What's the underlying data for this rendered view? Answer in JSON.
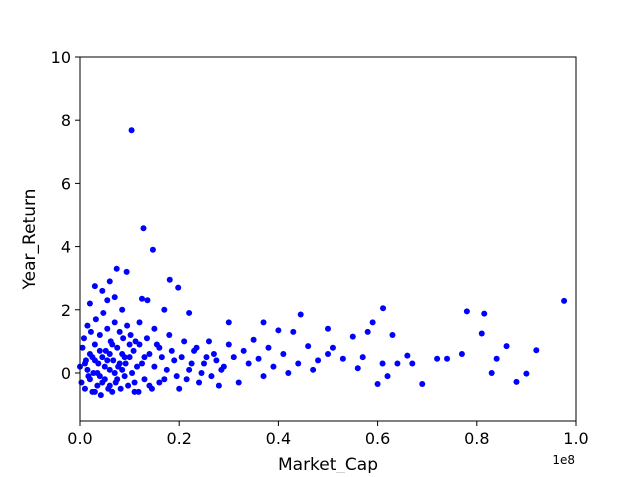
{
  "chart_data": {
    "type": "scatter",
    "color": "#0000ff",
    "xlabel": "Market_Cap",
    "ylabel": "Year_Return",
    "x_offset_label": "1e8",
    "xlim": [
      0,
      1
    ],
    "ylim": [
      -1.52,
      10
    ],
    "xticks": [
      {
        "value": 0,
        "label": "0.0"
      },
      0.2,
      0.4,
      0.6,
      0.8,
      {
        "value": 1,
        "label": "1.0"
      }
    ],
    "yticks": [
      0,
      2,
      4,
      6,
      8,
      10
    ],
    "x": [
      0.104,
      0.128,
      0.147,
      0.074,
      0.094,
      0.181,
      0.198,
      0.976,
      0.611,
      0.78,
      0.815,
      0.125,
      0.136,
      0.03,
      0.045,
      0.06,
      0.07,
      0.055,
      0.02,
      0.085,
      0.22,
      0.17,
      0.445,
      0.37,
      0.3,
      0.5,
      0.58,
      0.59,
      0.63,
      0.81,
      0.86,
      0.92,
      0.88,
      0.9,
      0.84,
      0.83,
      0.77,
      0.74,
      0.72,
      0.69,
      0.67,
      0.66,
      0.64,
      0.62,
      0.61,
      0.6,
      0.57,
      0.56,
      0.55,
      0.53,
      0.51,
      0.5,
      0.48,
      0.47,
      0.46,
      0.44,
      0.43,
      0.42,
      0.41,
      0.4,
      0.39,
      0.38,
      0.37,
      0.36,
      0.35,
      0.34,
      0.33,
      0.32,
      0.31,
      0.3,
      0.29,
      0.28,
      0.27,
      0.26,
      0.25,
      0.24,
      0.23,
      0.22,
      0.21,
      0.2,
      0.19,
      0.18,
      0.17,
      0.16,
      0.15,
      0.14,
      0.13,
      0.12,
      0.11,
      0.1,
      0.0,
      0.003,
      0.005,
      0.008,
      0.01,
      0.012,
      0.015,
      0.017,
      0.02,
      0.022,
      0.025,
      0.027,
      0.03,
      0.032,
      0.035,
      0.037,
      0.04,
      0.042,
      0.045,
      0.047,
      0.05,
      0.052,
      0.055,
      0.057,
      0.06,
      0.062,
      0.065,
      0.067,
      0.07,
      0.072,
      0.075,
      0.077,
      0.08,
      0.082,
      0.085,
      0.087,
      0.09,
      0.092,
      0.095,
      0.097,
      0.1,
      0.102,
      0.105,
      0.108,
      0.11,
      0.112,
      0.115,
      0.118,
      0.12,
      0.125,
      0.13,
      0.135,
      0.14,
      0.145,
      0.15,
      0.155,
      0.16,
      0.165,
      0.175,
      0.185,
      0.195,
      0.205,
      0.215,
      0.225,
      0.235,
      0.245,
      0.255,
      0.265,
      0.275,
      0.285,
      0.01,
      0.02,
      0.03,
      0.04,
      0.05,
      0.06,
      0.07,
      0.08,
      0.09,
      0.04,
      0.06,
      0.03,
      0.015,
      0.025,
      0.035,
      0.045,
      0.055,
      0.065,
      0.075,
      0.085
    ],
    "values": [
      7.68,
      4.58,
      3.9,
      3.3,
      3.2,
      2.95,
      2.7,
      2.28,
      2.05,
      1.95,
      1.88,
      2.35,
      2.3,
      2.75,
      2.6,
      2.9,
      2.4,
      2.3,
      2.2,
      2.0,
      1.9,
      2.0,
      1.85,
      1.6,
      1.6,
      1.4,
      1.3,
      1.6,
      1.2,
      1.25,
      0.85,
      0.72,
      -0.28,
      -0.02,
      0.45,
      0.0,
      0.6,
      0.45,
      0.45,
      -0.35,
      0.3,
      0.55,
      0.3,
      -0.1,
      0.3,
      -0.35,
      0.5,
      0.15,
      1.15,
      0.45,
      0.8,
      0.6,
      0.4,
      0.1,
      0.85,
      0.3,
      1.3,
      0.0,
      0.6,
      1.35,
      0.2,
      0.8,
      -0.1,
      0.45,
      1.05,
      0.3,
      0.7,
      -0.3,
      0.5,
      0.9,
      0.2,
      -0.4,
      0.6,
      1.0,
      0.3,
      -0.3,
      0.7,
      0.1,
      1.0,
      -0.5,
      0.4,
      1.2,
      -0.2,
      0.8,
      1.4,
      -0.4,
      0.5,
      1.6,
      -0.6,
      0.9,
      0.2,
      -0.3,
      0.8,
      1.1,
      -0.5,
      0.4,
      1.5,
      -0.1,
      0.6,
      1.3,
      -0.6,
      0.0,
      0.9,
      1.7,
      -0.4,
      0.3,
      1.2,
      -0.7,
      0.5,
      1.9,
      -0.2,
      0.7,
      1.4,
      -0.5,
      0.1,
      1.0,
      -0.6,
      0.4,
      1.6,
      -0.3,
      0.8,
      0.2,
      1.3,
      -0.5,
      0.6,
      1.1,
      -0.1,
      0.3,
      1.5,
      -0.4,
      0.5,
      1.2,
      0.0,
      0.7,
      -0.3,
      1.0,
      0.2,
      -0.6,
      0.9,
      0.3,
      -0.2,
      1.1,
      0.6,
      -0.5,
      0.2,
      0.9,
      -0.3,
      0.5,
      0.1,
      0.7,
      -0.1,
      0.5,
      -0.2,
      0.3,
      0.8,
      0.0,
      0.5,
      -0.1,
      0.4,
      0.1,
      0.3,
      -0.2,
      0.4,
      -0.1,
      0.2,
      0.6,
      0.0,
      0.3,
      0.5,
      0.7,
      -0.4,
      -0.6,
      0.1,
      0.5,
      0.0,
      -0.3,
      0.4,
      0.9,
      -0.2,
      0.1
    ]
  }
}
